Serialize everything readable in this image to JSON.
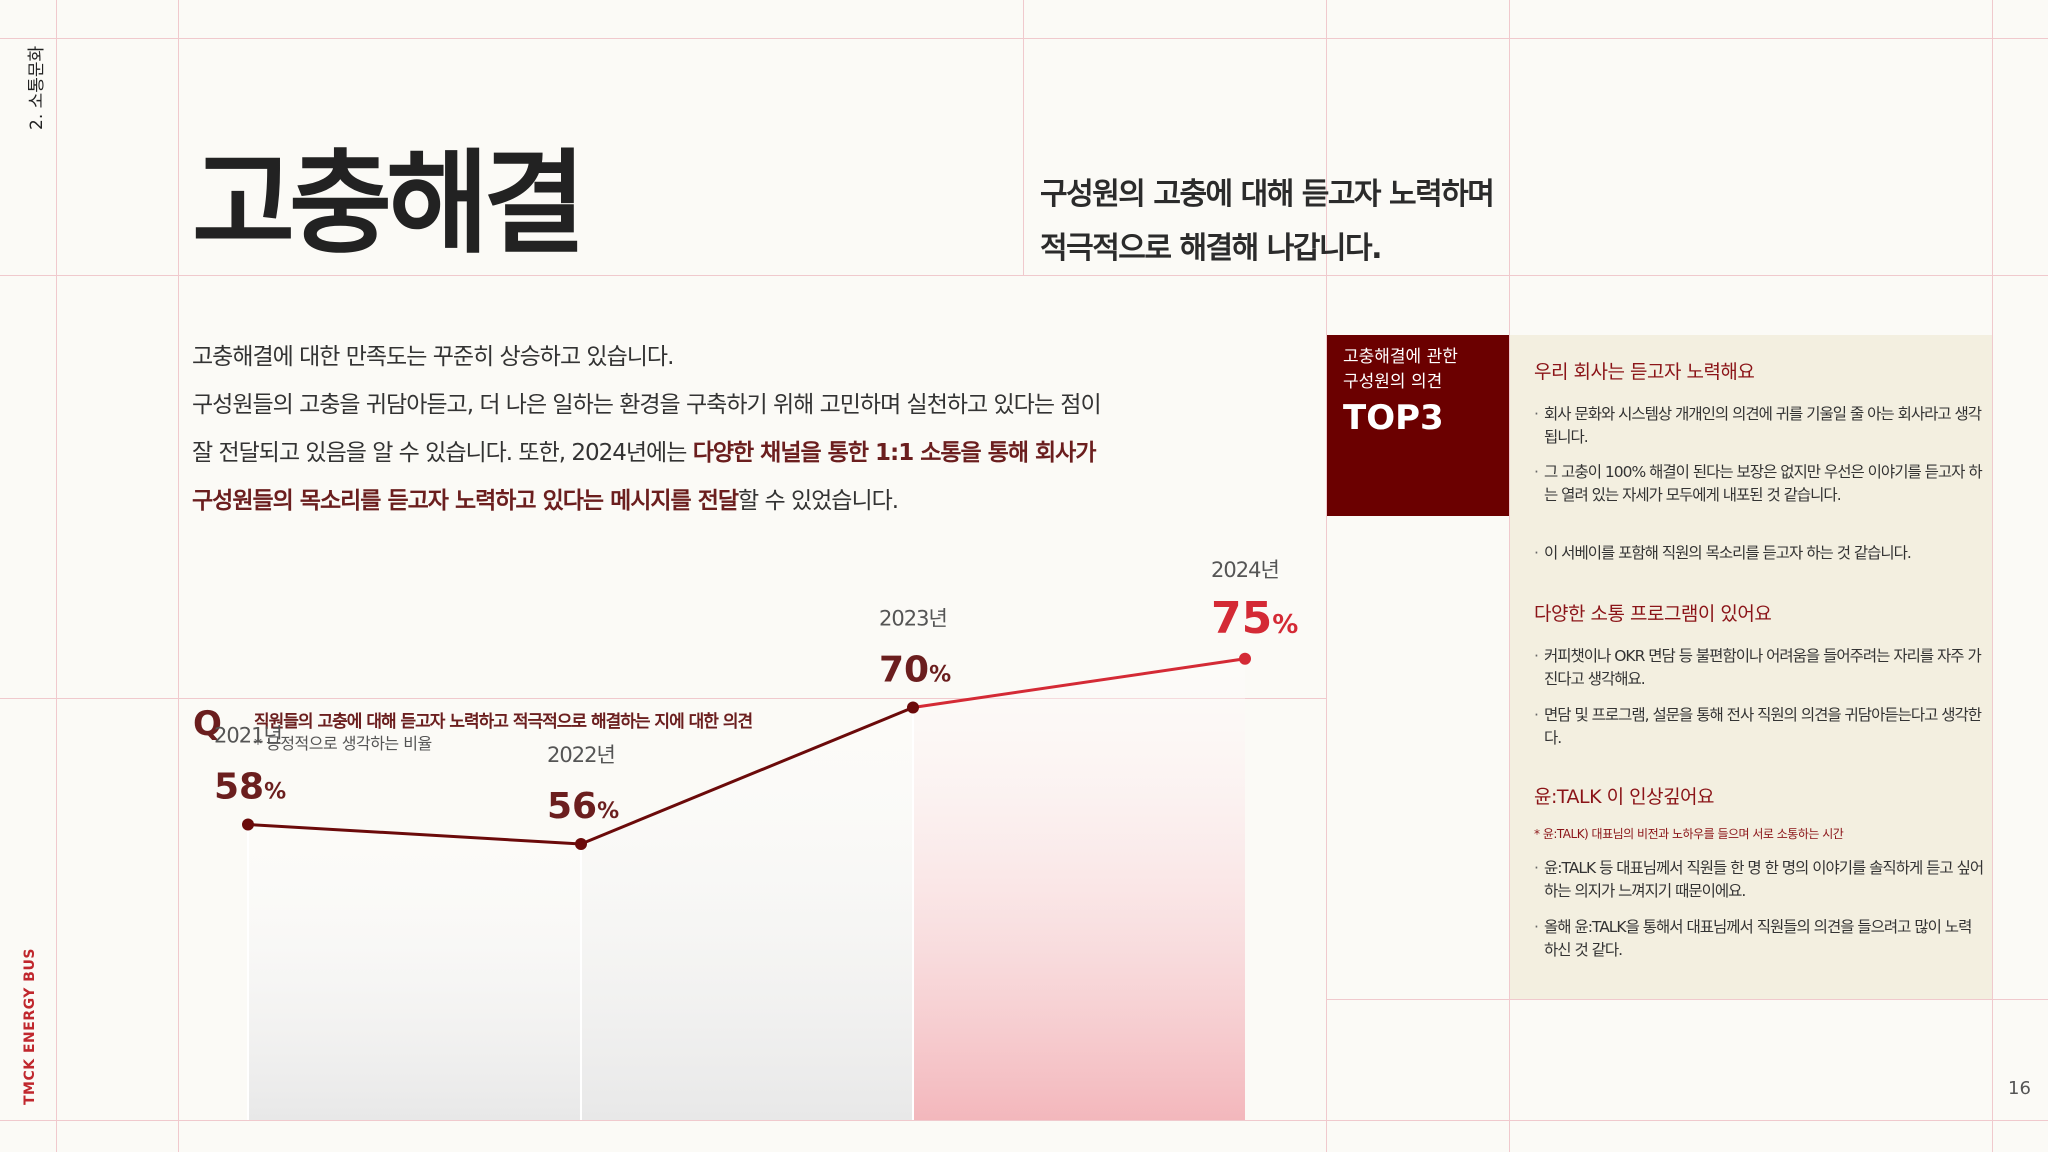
{
  "section_label": "2. 소통문화",
  "brand": "TMCK ENERGY BUS",
  "page_number": "16",
  "title": "고충해결",
  "subtitle_lines": [
    "구성원의 고충에 대해 듣고자 노력하며",
    "적극적으로 해결해 나갑니다."
  ],
  "intro": {
    "line1": "고충해결에 대한 만족도는 꾸준히 상승하고 있습니다.",
    "line2": "구성원들의 고충을 귀담아듣고, 더 나은 일하는 환경을 구축하기 위해 고민하며 실천하고 있다는 점이",
    "line3_plain": "잘 전달되고 있음을 알 수 있습니다.  또한, 2024년에는 ",
    "line3_bold": "다양한 채널을 통한 1:1 소통을 통해 회사가",
    "line4_bold": "구성원들의 목소리를 듣고자 노력하고 있다는 메시지를 전달",
    "line4_plain": "할 수 있었습니다."
  },
  "top3": {
    "caption_line1": "고충해결에 관한",
    "caption_line2": "구성원의 의견",
    "heading": "TOP3"
  },
  "opinions": {
    "cat1": {
      "title": "우리 회사는 듣고자 노력해요",
      "items": [
        "회사 문화와 시스템상 개개인의 의견에 귀를 기울일 줄 아는 회사라고 생각됩니다.",
        "그 고충이 100% 해결이 된다는 보장은 없지만 우선은 이야기를 듣고자 하는 열려 있는 자세가 모두에게 내포된 것 같습니다.",
        "이 서베이를 포함해 직원의 목소리를 듣고자 하는 것 같습니다."
      ]
    },
    "cat2": {
      "title": "다양한 소통 프로그램이 있어요",
      "items": [
        "커피챗이나 OKR 면담 등 불편함이나 어려움을 들어주려는 자리를 자주 가진다고 생각해요.",
        "면담 및 프로그램, 설문을 통해 전사 직원의 의견을 귀담아듣는다고 생각한다."
      ]
    },
    "cat3": {
      "title": "윤:TALK 이 인상깊어요",
      "note": "* 윤:TALK) 대표님의 비전과 노하우를 들으며 서로 소통하는 시간",
      "items": [
        "윤:TALK 등 대표님께서 직원들 한 명 한 명의 이야기를 솔직하게 듣고 싶어 하는 의지가 느껴지기 때문이에요.",
        "올해 윤:TALK을 통해서 대표님께서 직원들의 의견을 들으려고 많이 노력하신 것 같다."
      ]
    }
  },
  "question": {
    "mark": "Q",
    "text": "직원들의 고충에 대해 듣고자 노력하고 적극적으로 해결하는 지에 대한 의견",
    "note": "* 긍정적으로 생각하는 비율"
  },
  "chart_data": {
    "type": "line",
    "categories": [
      "2021년",
      "2022년",
      "2023년",
      "2024년"
    ],
    "values": [
      58,
      56,
      70,
      75
    ],
    "unit": "%",
    "ylim": [
      40,
      80
    ],
    "colors": {
      "line_past": "#6b0a0a",
      "line_latest": "#d42a35",
      "label_past": "#6b1e1e",
      "label_latest": "#d42a35",
      "fill_past": "#e8e8e8",
      "fill_latest": "#f3b7bc"
    }
  }
}
